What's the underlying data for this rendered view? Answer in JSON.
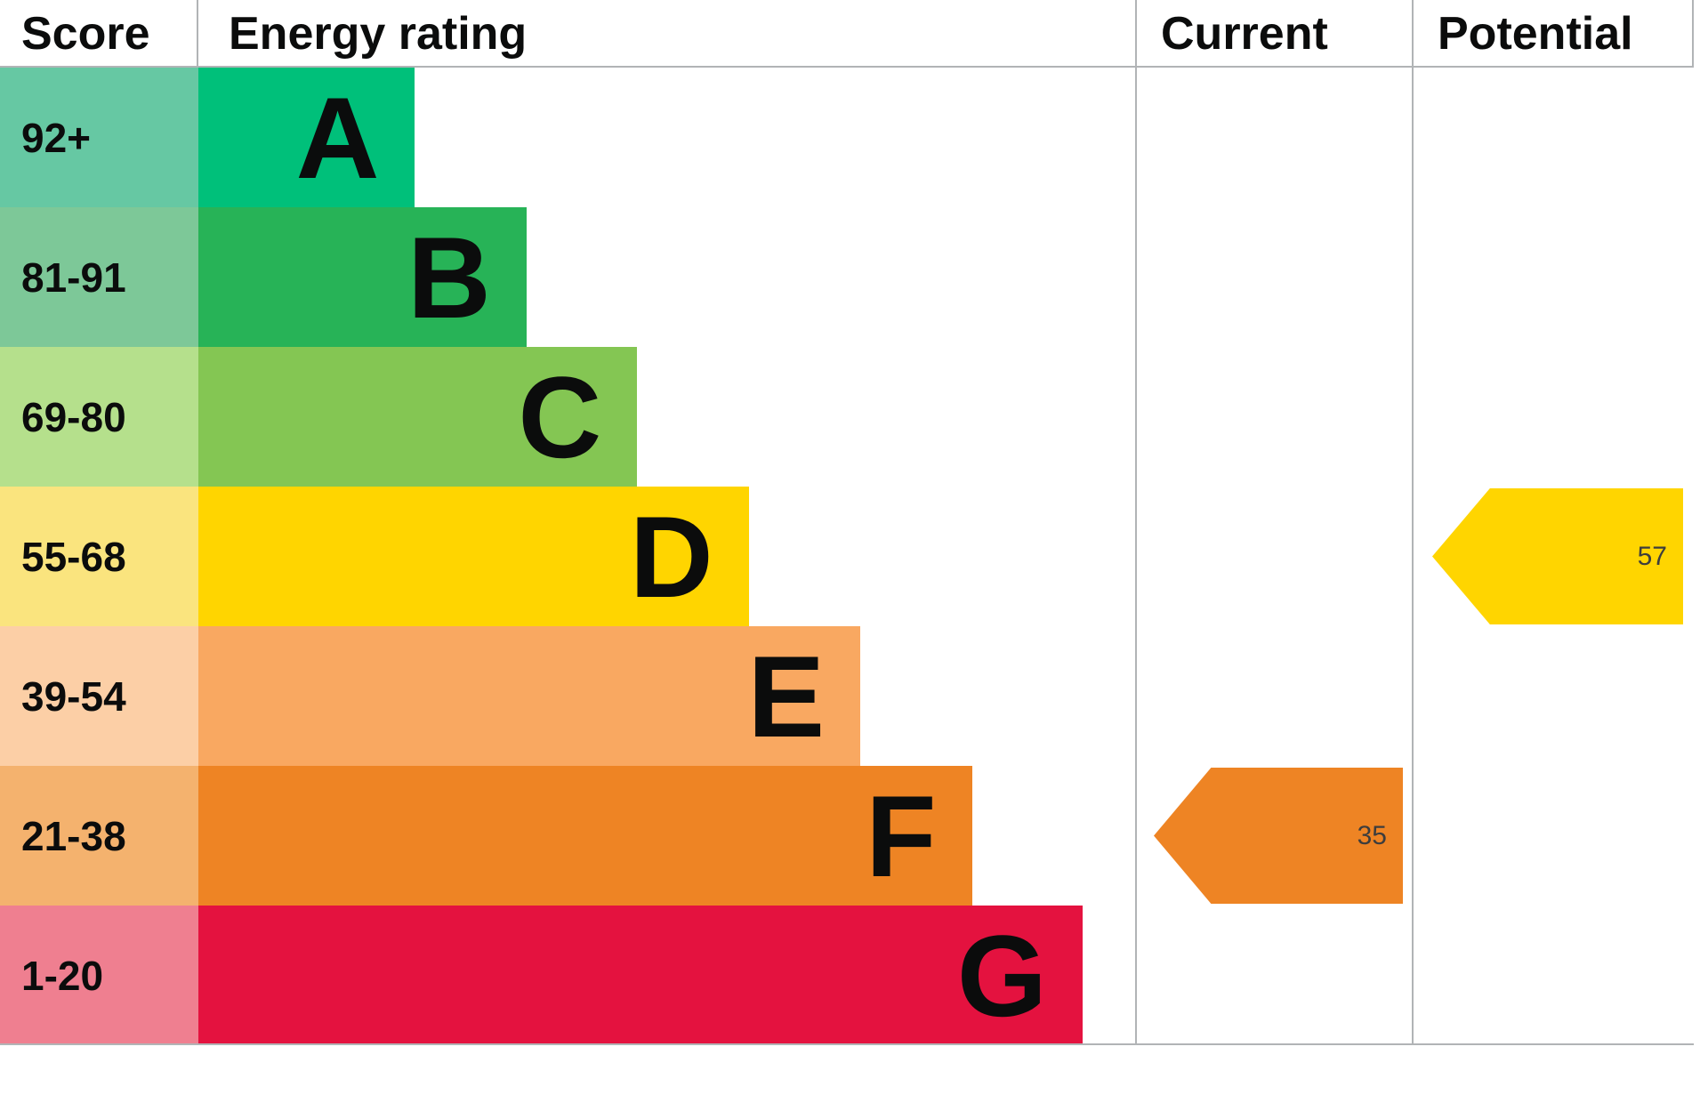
{
  "header": {
    "score": "Score",
    "energy_rating": "Energy rating",
    "current": "Current",
    "potential": "Potential"
  },
  "chart_data": {
    "type": "bar",
    "subtype": "epc-energy-rating",
    "title": "Energy rating",
    "columns": [
      "Score",
      "Energy rating",
      "Current",
      "Potential"
    ],
    "bands": [
      {
        "score_range": "92+",
        "letter": "A",
        "bar_color": "#00c07a",
        "score_color": "#66c8a3",
        "bar_width_pct": 23.1
      },
      {
        "score_range": "81-91",
        "letter": "B",
        "bar_color": "#27b357",
        "score_color": "#7dc898",
        "bar_width_pct": 35.0
      },
      {
        "score_range": "69-80",
        "letter": "C",
        "bar_color": "#84c653",
        "score_color": "#b5e08c",
        "bar_width_pct": 46.8
      },
      {
        "score_range": "55-68",
        "letter": "D",
        "bar_color": "#ffd500",
        "score_color": "#fae47e",
        "bar_width_pct": 58.7
      },
      {
        "score_range": "39-54",
        "letter": "E",
        "bar_color": "#f9a861",
        "score_color": "#fccfa6",
        "bar_width_pct": 70.6
      },
      {
        "score_range": "21-38",
        "letter": "F",
        "bar_color": "#ee8424",
        "score_color": "#f4b26e",
        "bar_width_pct": 82.5
      },
      {
        "score_range": "1-20",
        "letter": "G",
        "bar_color": "#e4123f",
        "score_color": "#ef7f90",
        "bar_width_pct": 94.3
      }
    ],
    "current": {
      "value": 35,
      "band": "F",
      "color": "#ee8424"
    },
    "potential": {
      "value": 57,
      "band": "D",
      "color": "#ffd500"
    }
  }
}
